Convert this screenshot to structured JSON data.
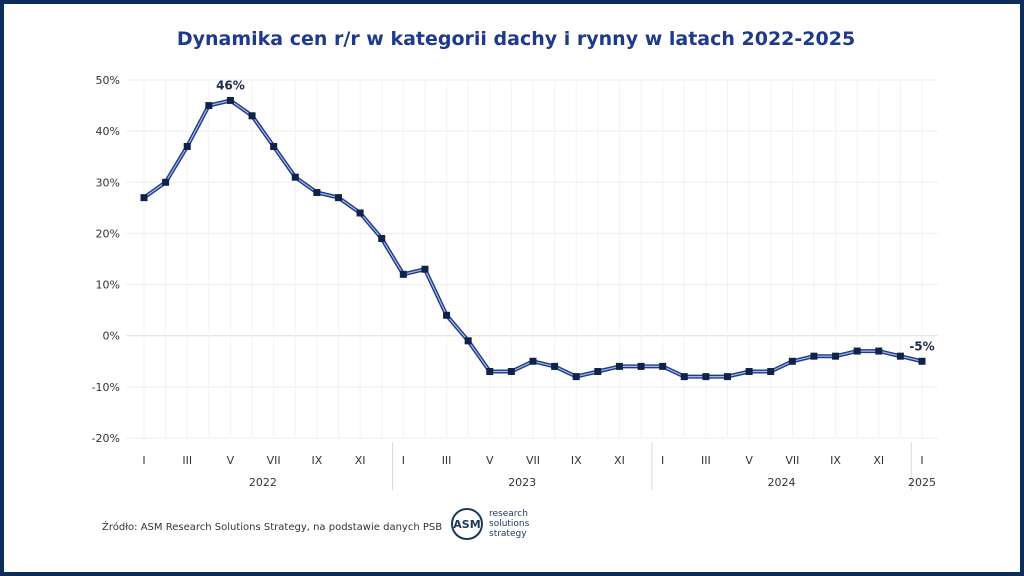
{
  "header": {
    "title": "Dynamika cen r/r w kategorii dachy i rynny w latach 2022-2025"
  },
  "footer": {
    "source": "Źródło: ASM Research Solutions Strategy, na podstawie danych PSB",
    "logo_mark": "ASM",
    "logo_lines": [
      "research",
      "solutions",
      "strategy"
    ]
  },
  "colors": {
    "line": "#1f3a8a",
    "line_highlight": "#a9b8e3",
    "marker": "#0e2347",
    "frame": "#0e2e5a",
    "grid": "#eeeeee"
  },
  "chart_data": {
    "type": "line",
    "title": "Dynamika cen r/r w kategorii dachy i rynny w latach 2022-2025",
    "x": [
      "2022-01",
      "2022-02",
      "2022-03",
      "2022-04",
      "2022-05",
      "2022-06",
      "2022-07",
      "2022-08",
      "2022-09",
      "2022-10",
      "2022-11",
      "2022-12",
      "2023-01",
      "2023-02",
      "2023-03",
      "2023-04",
      "2023-05",
      "2023-06",
      "2023-07",
      "2023-08",
      "2023-09",
      "2023-10",
      "2023-11",
      "2023-12",
      "2024-01",
      "2024-02",
      "2024-03",
      "2024-04",
      "2024-05",
      "2024-06",
      "2024-07",
      "2024-08",
      "2024-09",
      "2024-10",
      "2024-11",
      "2024-12",
      "2025-01"
    ],
    "series": [
      {
        "values": [
          27,
          30,
          37,
          45,
          46,
          43,
          37,
          31,
          28,
          27,
          24,
          19,
          12,
          13,
          4,
          -1,
          -7,
          -7,
          -5,
          -6,
          -8,
          -7,
          -6,
          -6,
          -6,
          -8,
          -8,
          -8,
          -7,
          -7,
          -5,
          -4,
          -4,
          -3,
          -3,
          -4,
          -5
        ],
        "unit": "%"
      }
    ],
    "ylim": [
      -20,
      50
    ],
    "yticks": [
      "50%",
      "40%",
      "30%",
      "20%",
      "10%",
      "0%",
      "-10%",
      "-20%"
    ],
    "ytick_values": [
      50,
      40,
      30,
      20,
      10,
      0,
      -10,
      -20
    ],
    "month_labels": [
      "I",
      "",
      "III",
      "",
      "V",
      "",
      "VII",
      "",
      "IX",
      "",
      "XI",
      "",
      "I",
      "",
      "III",
      "",
      "V",
      "",
      "VII",
      "",
      "IX",
      "",
      "XI",
      "",
      "I",
      "",
      "III",
      "",
      "V",
      "",
      "VII",
      "",
      "IX",
      "",
      "XI",
      "",
      "I"
    ],
    "year_groups": [
      {
        "label": "2022",
        "start": 0,
        "end": 11
      },
      {
        "label": "2023",
        "start": 12,
        "end": 23
      },
      {
        "label": "2024",
        "start": 24,
        "end": 35
      },
      {
        "label": "2025",
        "start": 36,
        "end": 36
      }
    ],
    "annotations": [
      {
        "index": 4,
        "text": "46%"
      },
      {
        "index": 36,
        "text": "-5%"
      }
    ],
    "grid": true,
    "legend": "none"
  }
}
